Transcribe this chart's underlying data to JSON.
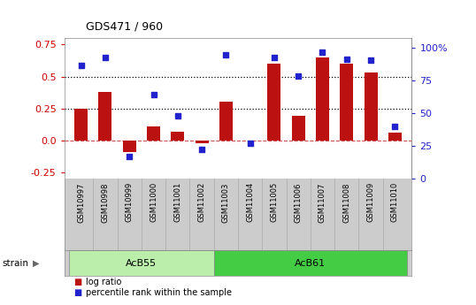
{
  "title": "GDS471 / 960",
  "samples": [
    "GSM10997",
    "GSM10998",
    "GSM10999",
    "GSM11000",
    "GSM11001",
    "GSM11002",
    "GSM11003",
    "GSM11004",
    "GSM11005",
    "GSM11006",
    "GSM11007",
    "GSM11008",
    "GSM11009",
    "GSM11010"
  ],
  "log_ratio": [
    0.25,
    0.38,
    -0.09,
    0.11,
    0.07,
    -0.02,
    0.3,
    0.0,
    0.6,
    0.19,
    0.65,
    0.6,
    0.53,
    0.06
  ],
  "percentile": [
    86,
    92,
    17,
    64,
    48,
    22,
    94,
    27,
    92,
    78,
    96,
    91,
    90,
    40
  ],
  "bar_color": "#bb1111",
  "dot_color": "#2222cc",
  "ylim_left": [
    -0.3,
    0.8
  ],
  "ylim_right": [
    0,
    107
  ],
  "yticks_left": [
    -0.25,
    0.0,
    0.25,
    0.5,
    0.75
  ],
  "yticks_right": [
    0,
    25,
    50,
    75,
    100
  ],
  "ytick_labels_right": [
    "0",
    "25",
    "50",
    "75",
    "100%"
  ],
  "hlines": [
    0.25,
    0.5
  ],
  "zero_line": 0.0,
  "strain_groups": [
    {
      "label": "AcB55",
      "start": 0,
      "end": 5,
      "color": "#bbeeaa"
    },
    {
      "label": "AcB61",
      "start": 6,
      "end": 13,
      "color": "#44cc44"
    }
  ],
  "strain_label": "strain",
  "legend_items": [
    {
      "label": "log ratio",
      "color": "#bb1111"
    },
    {
      "label": "percentile rank within the sample",
      "color": "#2222cc"
    }
  ],
  "tick_label_color_left": "#cc0000",
  "tick_label_color_right": "#2222cc",
  "bg_color": "#ffffff",
  "xtick_bg": "#cccccc",
  "strain_border_color": "#888888"
}
